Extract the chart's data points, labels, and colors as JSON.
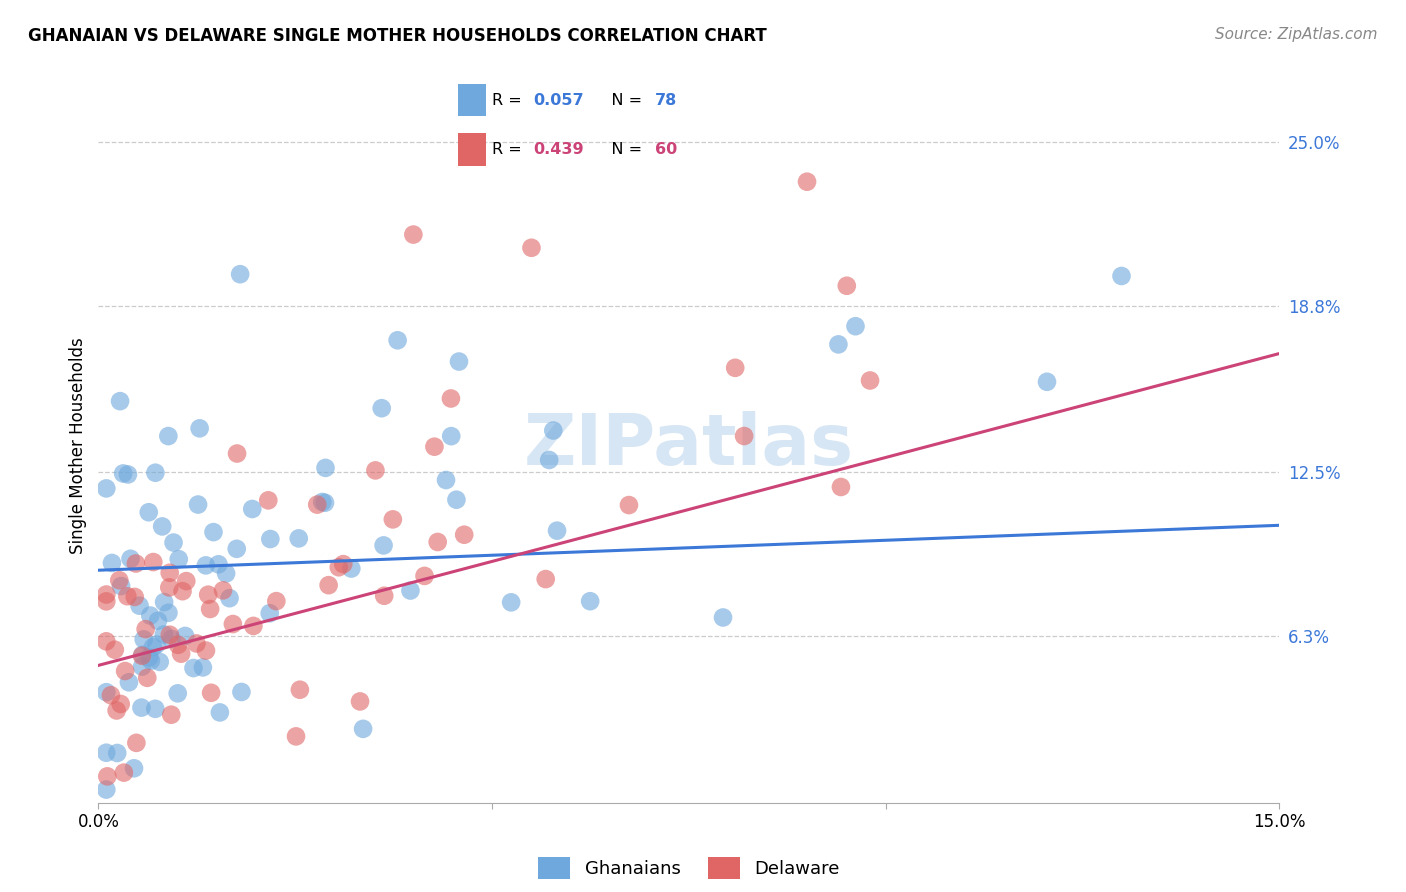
{
  "title": "GHANAIAN VS DELAWARE SINGLE MOTHER HOUSEHOLDS CORRELATION CHART",
  "source": "Source: ZipAtlas.com",
  "ylabel": "Single Mother Households",
  "ytick_labels": [
    "6.3%",
    "12.5%",
    "18.8%",
    "25.0%"
  ],
  "ytick_values": [
    0.063,
    0.125,
    0.188,
    0.25
  ],
  "xlim": [
    0.0,
    0.15
  ],
  "ylim": [
    0.0,
    0.27
  ],
  "ghanaians_R": "0.057",
  "ghanaians_N": "78",
  "delaware_R": "0.439",
  "delaware_N": "60",
  "ghanaians_color": "#6fa8dc",
  "delaware_color": "#e06666",
  "line_blue": "#3c78d8",
  "line_pink": "#cc4477",
  "watermark_color": "#a8c8e8",
  "legend_box_color": "#cccccc",
  "axis_label_color": "#3c78d8",
  "title_fontsize": 12,
  "source_fontsize": 11,
  "tick_fontsize": 12,
  "ylabel_fontsize": 12
}
